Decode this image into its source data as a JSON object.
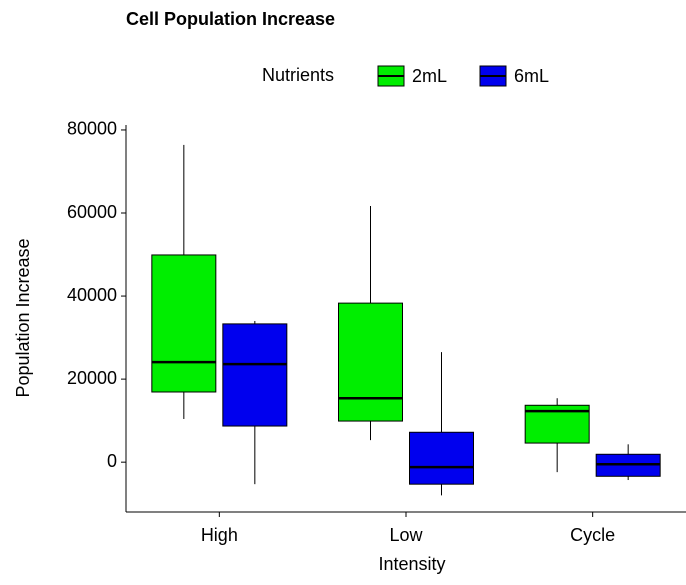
{
  "chart_data": {
    "type": "box",
    "title": "Cell Population Increase",
    "x_label": "Intensity",
    "y_label": "Population Increase",
    "legend_title": "Nutrients",
    "categories": [
      "High",
      "Low",
      "Cycle"
    ],
    "series": [
      {
        "name": "2mL",
        "color": "#00ee00",
        "values": [
          {
            "min": 10400,
            "q1": 16900,
            "median": 24100,
            "q3": 49900,
            "max": 76400
          },
          {
            "min": 5300,
            "q1": 9900,
            "median": 15400,
            "q3": 38300,
            "max": 61700
          },
          {
            "min": -2400,
            "q1": 4600,
            "median": 12300,
            "q3": 13700,
            "max": 15400
          }
        ]
      },
      {
        "name": "6mL",
        "color": "#0000ee",
        "values": [
          {
            "min": -5300,
            "q1": 8700,
            "median": 23600,
            "q3": 33300,
            "max": 34000
          },
          {
            "min": -8000,
            "q1": -5300,
            "median": -1200,
            "q3": 7200,
            "max": 26500
          },
          {
            "min": -4300,
            "q1": -3400,
            "median": -500,
            "q3": 1900,
            "max": 4300
          }
        ]
      }
    ],
    "ylim": [
      -12000,
      83000
    ],
    "yticks": [
      0,
      20000,
      40000,
      60000,
      80000
    ],
    "legend_position": "top"
  }
}
